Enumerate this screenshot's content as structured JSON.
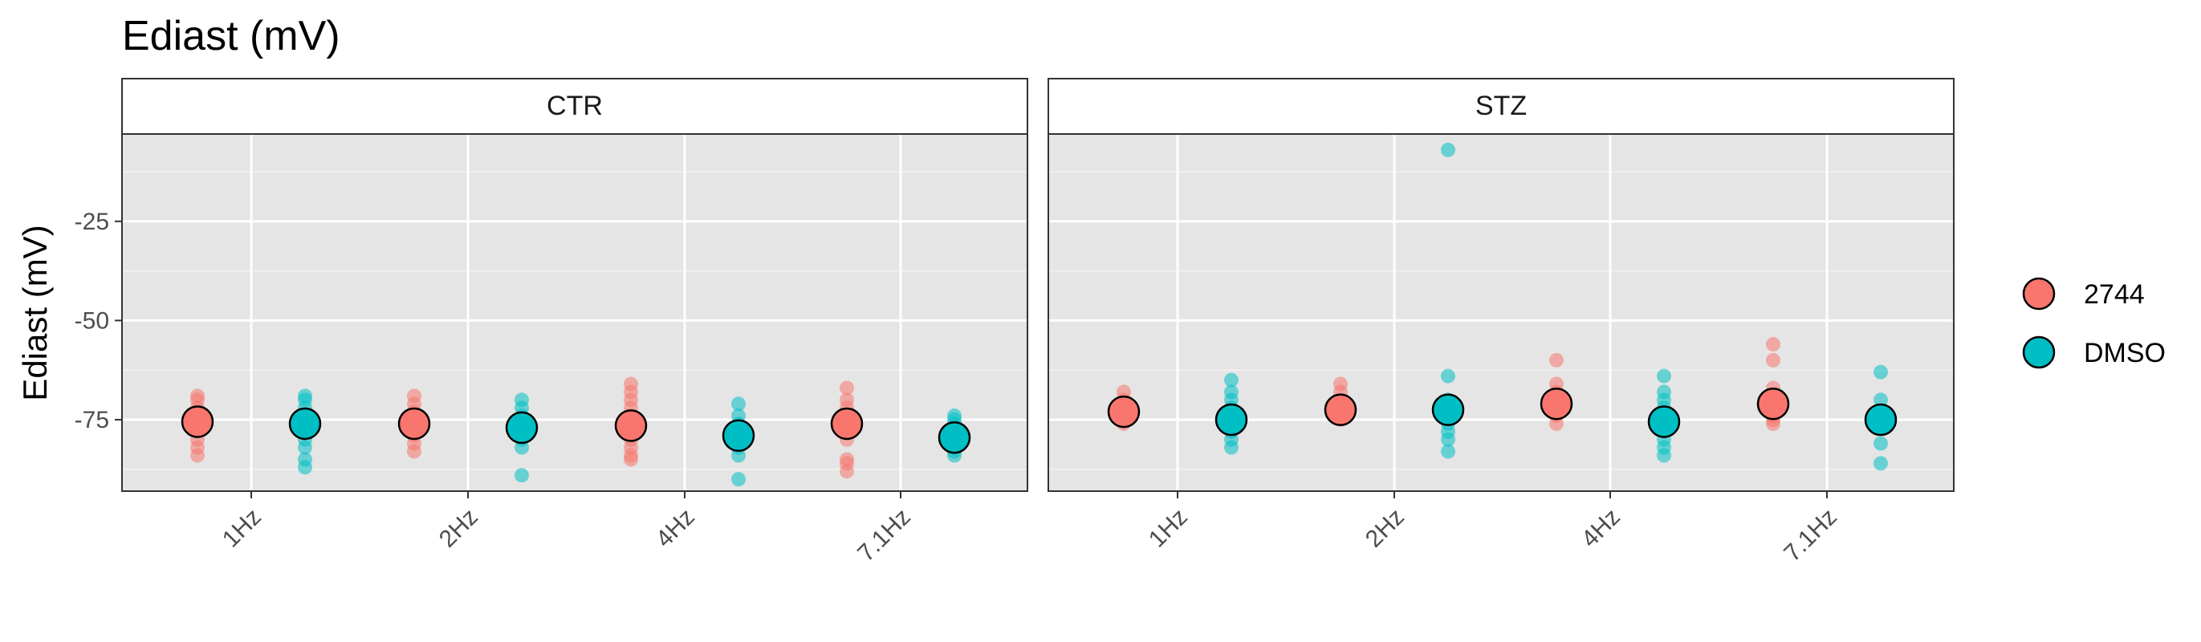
{
  "chart_data": {
    "type": "scatter",
    "title": "Ediast (mV)",
    "ylabel": "Ediast (mV)",
    "xlabel": "",
    "categories": [
      "1Hz",
      "2Hz",
      "4Hz",
      "7.1Hz"
    ],
    "ylim": [
      -93,
      -3
    ],
    "yticks": [
      -75,
      -50,
      -25
    ],
    "ytick_labels": [
      "-75",
      "-50",
      "-25"
    ],
    "grid": true,
    "legend_position": "right",
    "colors": {
      "2744": "#F8766D",
      "DMSO": "#00BFC4"
    },
    "series": [
      {
        "name": "2744"
      },
      {
        "name": "DMSO"
      }
    ],
    "panels": [
      {
        "label": "CTR",
        "groups": [
          {
            "x": "1Hz",
            "series": "2744",
            "mean": -75.5,
            "points": [
              -69,
              -70,
              -72,
              -74,
              -76,
              -78,
              -80,
              -82,
              -84
            ]
          },
          {
            "x": "1Hz",
            "series": "DMSO",
            "mean": -76,
            "points": [
              -69,
              -70,
              -72,
              -74,
              -76,
              -78,
              -80,
              -82,
              -85,
              -87
            ]
          },
          {
            "x": "2Hz",
            "series": "2744",
            "mean": -76,
            "points": [
              -69,
              -71,
              -73,
              -75,
              -77,
              -79,
              -81,
              -83
            ]
          },
          {
            "x": "2Hz",
            "series": "DMSO",
            "mean": -77,
            "points": [
              -70,
              -72,
              -74,
              -76,
              -78,
              -80,
              -82,
              -89
            ]
          },
          {
            "x": "4Hz",
            "series": "2744",
            "mean": -76.5,
            "points": [
              -66,
              -68,
              -70,
              -72,
              -74,
              -76,
              -78,
              -80,
              -82,
              -84,
              -85
            ]
          },
          {
            "x": "4Hz",
            "series": "DMSO",
            "mean": -79,
            "points": [
              -71,
              -74,
              -76,
              -78,
              -80,
              -82,
              -84,
              -90
            ]
          },
          {
            "x": "7.1Hz",
            "series": "2744",
            "mean": -76,
            "points": [
              -67,
              -70,
              -72,
              -74,
              -77,
              -80,
              -85,
              -86,
              -88
            ]
          },
          {
            "x": "7.1Hz",
            "series": "DMSO",
            "mean": -79.5,
            "points": [
              -74,
              -75,
              -76,
              -77,
              -78,
              -79,
              -80,
              -81,
              -82,
              -83,
              -84
            ]
          }
        ]
      },
      {
        "label": "STZ",
        "groups": [
          {
            "x": "1Hz",
            "series": "2744",
            "mean": -73,
            "points": [
              -68,
              -70,
              -72,
              -74,
              -76
            ]
          },
          {
            "x": "1Hz",
            "series": "DMSO",
            "mean": -75,
            "points": [
              -65,
              -68,
              -70,
              -72,
              -74,
              -76,
              -78,
              -80,
              -82
            ]
          },
          {
            "x": "2Hz",
            "series": "2744",
            "mean": -72.5,
            "points": [
              -66,
              -68,
              -70,
              -72,
              -74,
              -75
            ]
          },
          {
            "x": "2Hz",
            "series": "DMSO",
            "mean": -72.5,
            "points": [
              -7,
              -64,
              -70,
              -72,
              -74,
              -76,
              -78,
              -80,
              -83
            ]
          },
          {
            "x": "4Hz",
            "series": "2744",
            "mean": -71,
            "points": [
              -60,
              -66,
              -68,
              -70,
              -72,
              -74,
              -76
            ]
          },
          {
            "x": "4Hz",
            "series": "DMSO",
            "mean": -75.5,
            "points": [
              -64,
              -68,
              -70,
              -72,
              -74,
              -76,
              -78,
              -80,
              -82,
              -84
            ]
          },
          {
            "x": "7.1Hz",
            "series": "2744",
            "mean": -71,
            "points": [
              -56,
              -60,
              -67,
              -70,
              -72,
              -74,
              -75,
              -76
            ]
          },
          {
            "x": "7.1Hz",
            "series": "DMSO",
            "mean": -75,
            "points": [
              -63,
              -70,
              -73,
              -75,
              -77,
              -81,
              -86
            ]
          }
        ]
      }
    ]
  }
}
